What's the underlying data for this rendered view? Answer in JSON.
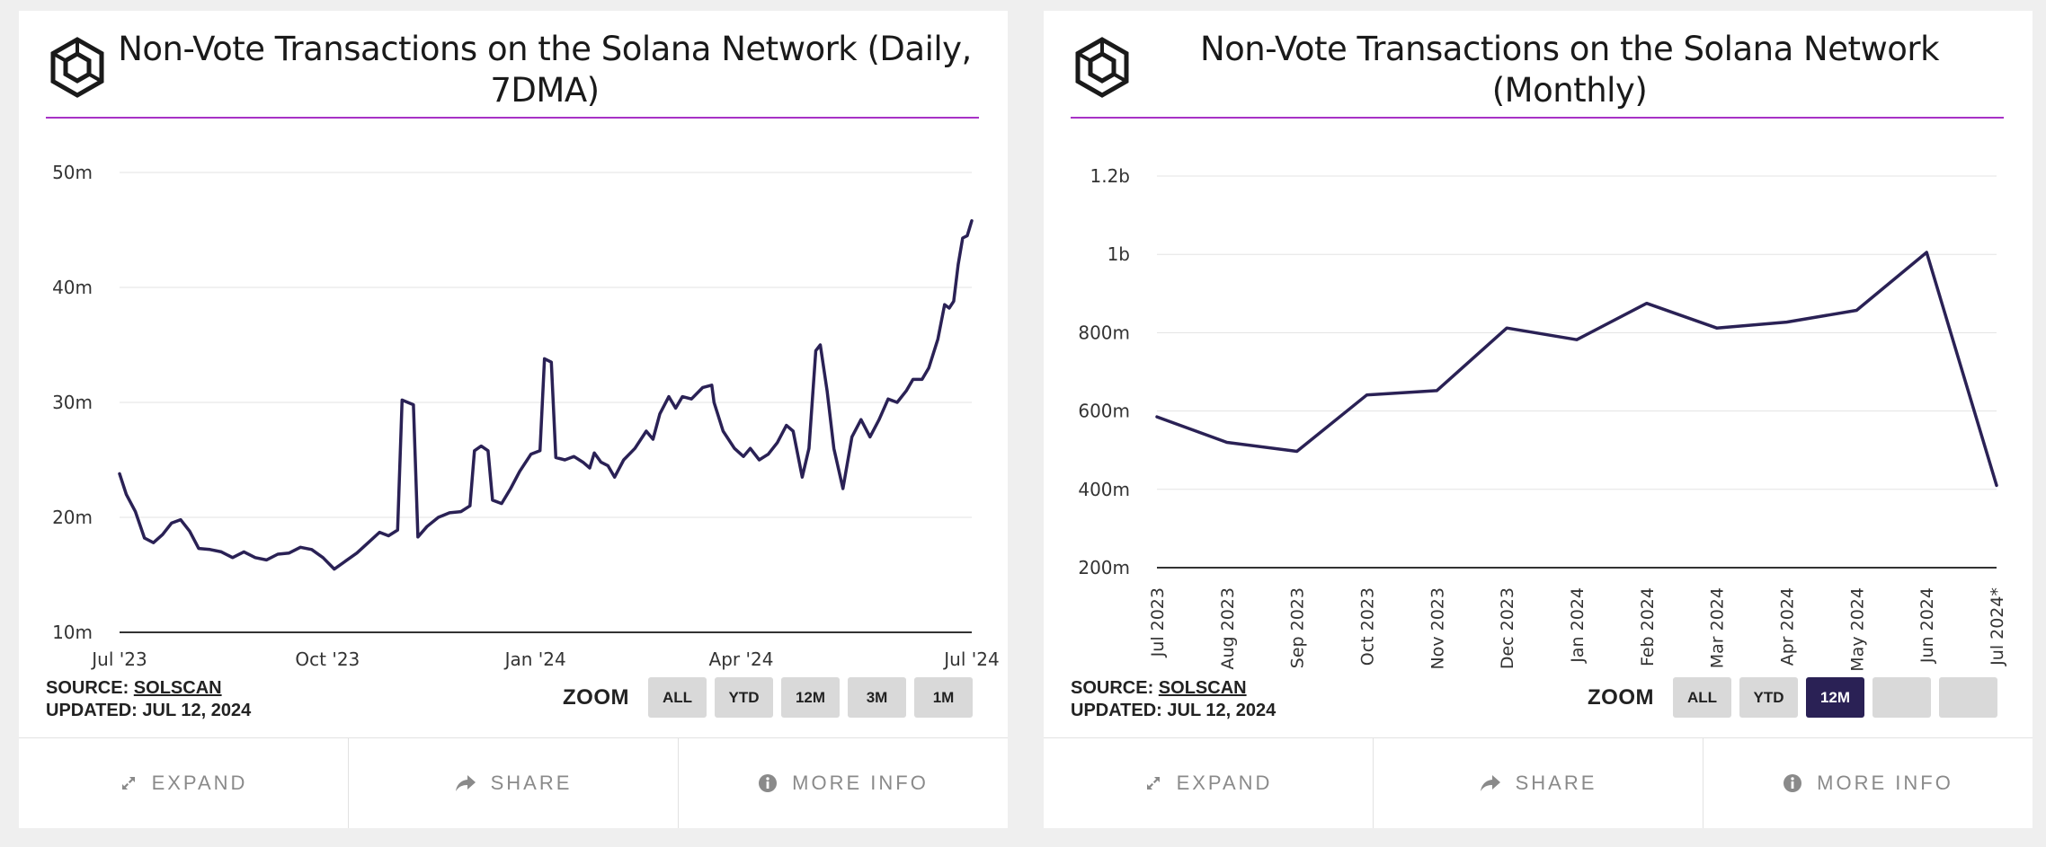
{
  "charts": [
    {
      "title": "Non-Vote Transactions on the Solana Network (Daily, 7DMA)",
      "source_label": "SOURCE:",
      "source_name": "SOLSCAN",
      "updated": "UPDATED: JUL 12, 2024",
      "zoom_label": "ZOOM",
      "zoom_buttons": [
        "ALL",
        "YTD",
        "12M",
        "3M",
        "1M"
      ],
      "active_zoom": null,
      "footer": [
        "EXPAND",
        "SHARE",
        "MORE INFO"
      ]
    },
    {
      "title": "Non-Vote Transactions on the Solana Network (Monthly)",
      "source_label": "SOURCE:",
      "source_name": "SOLSCAN",
      "updated": "UPDATED: JUL 12, 2024",
      "zoom_label": "ZOOM",
      "zoom_buttons": [
        "ALL",
        "YTD",
        "12M",
        "",
        ""
      ],
      "active_zoom": 2,
      "footer": [
        "EXPAND",
        "SHARE",
        "MORE INFO"
      ]
    }
  ],
  "colors": {
    "line": "#2a2155",
    "accent_rule": "#a832c6",
    "active_zoom": "#2a2155"
  },
  "icons": {
    "logo": "cube-logo-icon",
    "expand": "expand-arrows-icon",
    "share": "share-arrow-icon",
    "info": "info-circle-icon"
  },
  "chart_data": [
    {
      "type": "line",
      "title": "Non-Vote Transactions on the Solana Network (Daily, 7DMA)",
      "xlabel": "",
      "ylabel": "",
      "x_ticks": [
        "Jul '23",
        "Oct '23",
        "Jan '24",
        "Apr '24",
        "Jul '24"
      ],
      "y_ticks": [
        "10m",
        "20m",
        "30m",
        "40m",
        "50m"
      ],
      "ylim": [
        10,
        50
      ],
      "y_unit": "millions",
      "grid": true,
      "x_range": [
        "2023-07-01",
        "2024-07-12"
      ],
      "points": [
        [
          "2023-07-01",
          23.8
        ],
        [
          "2023-07-04",
          22.0
        ],
        [
          "2023-07-08",
          20.5
        ],
        [
          "2023-07-12",
          18.2
        ],
        [
          "2023-07-16",
          17.8
        ],
        [
          "2023-07-20",
          18.5
        ],
        [
          "2023-07-24",
          19.5
        ],
        [
          "2023-07-28",
          19.8
        ],
        [
          "2023-08-01",
          18.8
        ],
        [
          "2023-08-05",
          17.3
        ],
        [
          "2023-08-10",
          17.2
        ],
        [
          "2023-08-15",
          17.0
        ],
        [
          "2023-08-20",
          16.5
        ],
        [
          "2023-08-25",
          17.0
        ],
        [
          "2023-08-30",
          16.5
        ],
        [
          "2023-09-04",
          16.3
        ],
        [
          "2023-09-09",
          16.8
        ],
        [
          "2023-09-14",
          16.9
        ],
        [
          "2023-09-19",
          17.4
        ],
        [
          "2023-09-24",
          17.2
        ],
        [
          "2023-09-29",
          16.5
        ],
        [
          "2023-10-04",
          15.5
        ],
        [
          "2023-10-09",
          16.2
        ],
        [
          "2023-10-14",
          16.9
        ],
        [
          "2023-10-19",
          17.8
        ],
        [
          "2023-10-24",
          18.7
        ],
        [
          "2023-10-28",
          18.4
        ],
        [
          "2023-11-01",
          18.9
        ],
        [
          "2023-11-03",
          30.2
        ],
        [
          "2023-11-08",
          29.8
        ],
        [
          "2023-11-10",
          18.3
        ],
        [
          "2023-11-14",
          19.2
        ],
        [
          "2023-11-19",
          20.0
        ],
        [
          "2023-11-24",
          20.4
        ],
        [
          "2023-11-29",
          20.5
        ],
        [
          "2023-12-03",
          21.0
        ],
        [
          "2023-12-05",
          25.8
        ],
        [
          "2023-12-08",
          26.2
        ],
        [
          "2023-12-11",
          25.8
        ],
        [
          "2023-12-13",
          21.5
        ],
        [
          "2023-12-17",
          21.2
        ],
        [
          "2023-12-21",
          22.5
        ],
        [
          "2023-12-25",
          24.0
        ],
        [
          "2023-12-30",
          25.5
        ],
        [
          "2024-01-03",
          25.8
        ],
        [
          "2024-01-05",
          33.8
        ],
        [
          "2024-01-08",
          33.5
        ],
        [
          "2024-01-10",
          25.2
        ],
        [
          "2024-01-14",
          25.0
        ],
        [
          "2024-01-18",
          25.3
        ],
        [
          "2024-01-22",
          24.8
        ],
        [
          "2024-01-25",
          24.3
        ],
        [
          "2024-01-27",
          25.6
        ],
        [
          "2024-01-30",
          24.8
        ],
        [
          "2024-02-02",
          24.5
        ],
        [
          "2024-02-05",
          23.5
        ],
        [
          "2024-02-09",
          25.0
        ],
        [
          "2024-02-14",
          26.0
        ],
        [
          "2024-02-19",
          27.5
        ],
        [
          "2024-02-22",
          26.8
        ],
        [
          "2024-02-25",
          29.0
        ],
        [
          "2024-02-29",
          30.5
        ],
        [
          "2024-03-03",
          29.5
        ],
        [
          "2024-03-06",
          30.5
        ],
        [
          "2024-03-10",
          30.3
        ],
        [
          "2024-03-15",
          31.3
        ],
        [
          "2024-03-19",
          31.5
        ],
        [
          "2024-03-20",
          30.0
        ],
        [
          "2024-03-24",
          27.5
        ],
        [
          "2024-03-29",
          26.0
        ],
        [
          "2024-04-02",
          25.3
        ],
        [
          "2024-04-05",
          26.0
        ],
        [
          "2024-04-09",
          25.0
        ],
        [
          "2024-04-13",
          25.5
        ],
        [
          "2024-04-17",
          26.5
        ],
        [
          "2024-04-21",
          28.0
        ],
        [
          "2024-04-24",
          27.5
        ],
        [
          "2024-04-28",
          23.5
        ],
        [
          "2024-05-01",
          26.0
        ],
        [
          "2024-05-04",
          34.5
        ],
        [
          "2024-05-06",
          35.0
        ],
        [
          "2024-05-09",
          31.0
        ],
        [
          "2024-05-12",
          26.0
        ],
        [
          "2024-05-16",
          22.5
        ],
        [
          "2024-05-20",
          27.0
        ],
        [
          "2024-05-24",
          28.5
        ],
        [
          "2024-05-28",
          27.0
        ],
        [
          "2024-06-01",
          28.5
        ],
        [
          "2024-06-05",
          30.3
        ],
        [
          "2024-06-09",
          30.0
        ],
        [
          "2024-06-13",
          31.0
        ],
        [
          "2024-06-16",
          32.0
        ],
        [
          "2024-06-20",
          32.0
        ],
        [
          "2024-06-23",
          33.0
        ],
        [
          "2024-06-27",
          35.5
        ],
        [
          "2024-06-30",
          38.5
        ],
        [
          "2024-07-02",
          38.2
        ],
        [
          "2024-07-04",
          38.8
        ],
        [
          "2024-07-06",
          42.0
        ],
        [
          "2024-07-08",
          44.3
        ],
        [
          "2024-07-10",
          44.5
        ],
        [
          "2024-07-12",
          45.8
        ]
      ]
    },
    {
      "type": "line",
      "title": "Non-Vote Transactions on the Solana Network (Monthly)",
      "xlabel": "",
      "ylabel": "",
      "categories": [
        "Jul 2023",
        "Aug 2023",
        "Sep 2023",
        "Oct 2023",
        "Nov 2023",
        "Dec 2023",
        "Jan 2024",
        "Feb 2024",
        "Mar 2024",
        "Apr 2024",
        "May 2024",
        "Jun 2024",
        "Jul 2024*"
      ],
      "values": [
        585,
        520,
        497,
        641,
        652,
        812,
        782,
        875,
        812,
        827,
        857,
        1005,
        410
      ],
      "y_unit": "millions",
      "y_ticks": [
        "200m",
        "400m",
        "600m",
        "800m",
        "1b",
        "1.2b"
      ],
      "ylim": [
        200,
        1200
      ],
      "grid": true
    }
  ]
}
